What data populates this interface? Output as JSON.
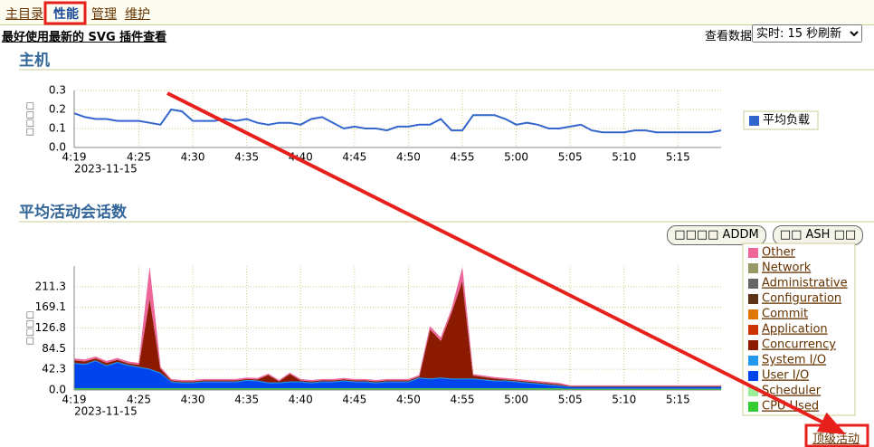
{
  "tabs": [
    "主目录",
    "性能",
    "管理",
    "维护"
  ],
  "notice": "最好使用最新的 SVG 插件查看",
  "view_label": "查看数据",
  "view_select": "实时: 15 秒刷新",
  "buttons": [
    "□□□□ ADDM",
    "□□ ASH □□"
  ],
  "link": "顶级活动",
  "chart_data": [
    {
      "type": "line",
      "title": "主机",
      "y_label": "□□□□",
      "x_date": "2023-11-15",
      "x": [
        "4:19",
        "4:20",
        "4:21",
        "4:22",
        "4:23",
        "4:24",
        "4:25",
        "4:26",
        "4:27",
        "4:28",
        "4:29",
        "4:30",
        "4:31",
        "4:32",
        "4:33",
        "4:34",
        "4:35",
        "4:36",
        "4:37",
        "4:38",
        "4:39",
        "4:40",
        "4:41",
        "4:42",
        "4:43",
        "4:44",
        "4:45",
        "4:46",
        "4:47",
        "4:48",
        "4:49",
        "4:50",
        "4:51",
        "4:52",
        "4:53",
        "4:54",
        "4:55",
        "4:56",
        "4:57",
        "4:58",
        "4:59",
        "5:00",
        "5:01",
        "5:02",
        "5:03",
        "5:04",
        "5:05",
        "5:06",
        "5:07",
        "5:08",
        "5:09",
        "5:10",
        "5:11",
        "5:12",
        "5:13",
        "5:14",
        "5:15",
        "5:16",
        "5:17",
        "5:18",
        "5:19"
      ],
      "xticks": [
        "4:19",
        "4:25",
        "4:30",
        "4:35",
        "4:40",
        "4:45",
        "4:50",
        "4:55",
        "5:00",
        "5:05",
        "5:10",
        "5:15"
      ],
      "ylim": [
        0,
        0.3
      ],
      "yticks": [
        {
          "value": 0,
          "label": "0.0"
        },
        0.1,
        0.2,
        0.3
      ],
      "grid": true,
      "series": [
        {
          "name": "平均负载",
          "color": "#3366cc",
          "values": [
            0.18,
            0.16,
            0.15,
            0.15,
            0.14,
            0.14,
            0.14,
            0.13,
            0.12,
            0.2,
            0.19,
            0.14,
            0.14,
            0.14,
            0.15,
            0.14,
            0.15,
            0.13,
            0.12,
            0.13,
            0.13,
            0.12,
            0.15,
            0.16,
            0.13,
            0.1,
            0.11,
            0.1,
            0.1,
            0.09,
            0.11,
            0.11,
            0.12,
            0.12,
            0.15,
            0.09,
            0.09,
            0.17,
            0.17,
            0.17,
            0.15,
            0.12,
            0.13,
            0.12,
            0.1,
            0.1,
            0.11,
            0.12,
            0.09,
            0.08,
            0.08,
            0.08,
            0.09,
            0.09,
            0.08,
            0.08,
            0.08,
            0.08,
            0.08,
            0.08,
            0.09
          ]
        }
      ]
    },
    {
      "type": "stacked-area",
      "title": "平均活动会话数",
      "y_label": "□□□□",
      "x_date": "2023-11-15",
      "x": [
        "4:19",
        "4:20",
        "4:21",
        "4:22",
        "4:23",
        "4:24",
        "4:25",
        "4:26",
        "4:27",
        "4:28",
        "4:29",
        "4:30",
        "4:31",
        "4:32",
        "4:33",
        "4:34",
        "4:35",
        "4:36",
        "4:37",
        "4:38",
        "4:39",
        "4:40",
        "4:41",
        "4:42",
        "4:43",
        "4:44",
        "4:45",
        "4:46",
        "4:47",
        "4:48",
        "4:49",
        "4:50",
        "4:51",
        "4:52",
        "4:53",
        "4:54",
        "4:55",
        "4:56",
        "4:57",
        "4:58",
        "4:59",
        "5:00",
        "5:01",
        "5:02",
        "5:03",
        "5:04",
        "5:05",
        "5:06",
        "5:07",
        "5:08",
        "5:09",
        "5:10",
        "5:11",
        "5:12",
        "5:13",
        "5:14",
        "5:15",
        "5:16",
        "5:17",
        "5:18",
        "5:19"
      ],
      "xticks": [
        "4:19",
        "4:25",
        "4:30",
        "4:35",
        "4:40",
        "4:45",
        "4:50",
        "4:55",
        "5:00",
        "5:05",
        "5:10",
        "5:15"
      ],
      "ylim": [
        0,
        253.6
      ],
      "yticks": [
        {
          "value": 0,
          "label": "0.0"
        },
        42.3,
        84.5,
        126.8,
        169.1,
        211.3
      ],
      "grid": true,
      "series": [
        {
          "name": "Other",
          "color": "#ee6699",
          "values": [
            3,
            3,
            3,
            3,
            3,
            3,
            3,
            60,
            3,
            2,
            2,
            2,
            2,
            2,
            2,
            2,
            2,
            2,
            2,
            2,
            2,
            2,
            2,
            2,
            2,
            2,
            2,
            2,
            2,
            2,
            2,
            2,
            2,
            6,
            6,
            6,
            25,
            2,
            2,
            2,
            2,
            2,
            2,
            2,
            2,
            2,
            1,
            1,
            1,
            1,
            1,
            1,
            1,
            1,
            1,
            1,
            1,
            1,
            1,
            1,
            1
          ]
        },
        {
          "name": "Network",
          "color": "#999966",
          "values": [
            0,
            0,
            0,
            0,
            0,
            0,
            0,
            0,
            0,
            0,
            0,
            0,
            0,
            0,
            0,
            0,
            0,
            0,
            0,
            0,
            0,
            0,
            0,
            0,
            0,
            0,
            0,
            0,
            0,
            0,
            0,
            0,
            0,
            0,
            0,
            0,
            0,
            0,
            0,
            0,
            0,
            0,
            0,
            0,
            0,
            0,
            0,
            0,
            0,
            0,
            0,
            0,
            0,
            0,
            0,
            0,
            0,
            0,
            0,
            0,
            0
          ]
        },
        {
          "name": "Administrative",
          "color": "#666666",
          "values": [
            0,
            0,
            0,
            0,
            0,
            0,
            0,
            0,
            0,
            0,
            0,
            0,
            0,
            0,
            0,
            0,
            0,
            0,
            0,
            0,
            0,
            0,
            0,
            0,
            0,
            0,
            0,
            0,
            0,
            0,
            0,
            0,
            0,
            0,
            0,
            0,
            0,
            0,
            0,
            0,
            0,
            0,
            0,
            0,
            0,
            0,
            0,
            0,
            0,
            0,
            0,
            0,
            0,
            0,
            0,
            0,
            0,
            0,
            0,
            0,
            0
          ]
        },
        {
          "name": "Configuration",
          "color": "#5c3317",
          "values": [
            0,
            0,
            0,
            0,
            0,
            0,
            0,
            0,
            0,
            0,
            0,
            0,
            0,
            0,
            0,
            0,
            0,
            0,
            0,
            0,
            0,
            0,
            0,
            0,
            0,
            0,
            0,
            0,
            0,
            0,
            0,
            0,
            0,
            0,
            0,
            0,
            0,
            0,
            0,
            0,
            0,
            0,
            0,
            0,
            0,
            0,
            0,
            0,
            0,
            0,
            0,
            0,
            0,
            0,
            0,
            0,
            0,
            0,
            0,
            0,
            0
          ]
        },
        {
          "name": "Commit",
          "color": "#e07800",
          "values": [
            0,
            0,
            0,
            0,
            0,
            0,
            0,
            0,
            0,
            0,
            0,
            0,
            0,
            0,
            0,
            0,
            0,
            0,
            0,
            0,
            0,
            0,
            0,
            0,
            0,
            0,
            0,
            0,
            0,
            0,
            0,
            0,
            0,
            0,
            0,
            0,
            0,
            0,
            0,
            0,
            0,
            0,
            0,
            0,
            0,
            0,
            0,
            0,
            0,
            0,
            0,
            0,
            0,
            0,
            0,
            0,
            0,
            0,
            0,
            0,
            0
          ]
        },
        {
          "name": "Application",
          "color": "#cc3300",
          "values": [
            0,
            0,
            0,
            0,
            0,
            0,
            0,
            0,
            0,
            0,
            0,
            0,
            0,
            0,
            0,
            0,
            0,
            0,
            0,
            0,
            0,
            0,
            0,
            0,
            0,
            0,
            0,
            0,
            0,
            0,
            0,
            0,
            0,
            0,
            0,
            0,
            0,
            0,
            0,
            0,
            0,
            0,
            0,
            0,
            0,
            0,
            0,
            0,
            0,
            0,
            0,
            0,
            0,
            0,
            0,
            0,
            0,
            0,
            0,
            0,
            0
          ]
        },
        {
          "name": "Concurrency",
          "color": "#8b1a00",
          "values": [
            5,
            5,
            4,
            5,
            4,
            3,
            4,
            145,
            8,
            2,
            2,
            2,
            2,
            2,
            2,
            2,
            2,
            2,
            15,
            2,
            15,
            2,
            2,
            2,
            2,
            2,
            2,
            2,
            2,
            2,
            2,
            2,
            2,
            100,
            75,
            135,
            200,
            6,
            5,
            4,
            2,
            2,
            2,
            2,
            2,
            2,
            1,
            1,
            1,
            1,
            1,
            1,
            1,
            1,
            1,
            1,
            1,
            1,
            1,
            1,
            1
          ]
        },
        {
          "name": "System I/O",
          "color": "#2299ee",
          "values": [
            2,
            2,
            2,
            2,
            2,
            2,
            2,
            2,
            2,
            2,
            2,
            2,
            2,
            2,
            2,
            2,
            2,
            2,
            2,
            2,
            2,
            2,
            2,
            2,
            2,
            2,
            2,
            2,
            2,
            2,
            2,
            2,
            2,
            2,
            2,
            2,
            2,
            2,
            2,
            2,
            2,
            2,
            2,
            2,
            2,
            2,
            1,
            1,
            1,
            1,
            1,
            1,
            1,
            1,
            1,
            1,
            1,
            1,
            1,
            1,
            1
          ]
        },
        {
          "name": "User I/O",
          "color": "#0044ee",
          "values": [
            50,
            48,
            55,
            45,
            52,
            46,
            42,
            38,
            30,
            12,
            10,
            10,
            12,
            12,
            12,
            12,
            15,
            14,
            10,
            10,
            12,
            12,
            10,
            12,
            12,
            14,
            12,
            12,
            10,
            12,
            12,
            12,
            20,
            18,
            20,
            18,
            18,
            18,
            16,
            14,
            14,
            12,
            10,
            8,
            6,
            4,
            3,
            3,
            3,
            3,
            3,
            3,
            3,
            3,
            3,
            3,
            3,
            3,
            3,
            3,
            3
          ]
        },
        {
          "name": "Scheduler",
          "color": "#99ee99",
          "values": [
            0,
            0,
            0,
            0,
            0,
            0,
            0,
            0,
            0,
            0,
            0,
            0,
            0,
            0,
            0,
            0,
            0,
            0,
            0,
            0,
            0,
            0,
            0,
            0,
            0,
            0,
            0,
            0,
            0,
            0,
            0,
            0,
            0,
            0,
            0,
            0,
            0,
            0,
            0,
            0,
            0,
            0,
            0,
            0,
            0,
            0,
            0,
            0,
            0,
            0,
            0,
            0,
            0,
            0,
            0,
            0,
            0,
            0,
            0,
            0,
            0
          ]
        },
        {
          "name": "CPU Used",
          "color": "#33cc33",
          "values": [
            4,
            4,
            4,
            4,
            4,
            4,
            4,
            4,
            4,
            4,
            4,
            4,
            4,
            4,
            4,
            4,
            4,
            4,
            4,
            4,
            4,
            4,
            4,
            4,
            4,
            4,
            4,
            4,
            4,
            4,
            4,
            4,
            4,
            4,
            4,
            4,
            4,
            4,
            4,
            4,
            4,
            4,
            4,
            4,
            4,
            4,
            3,
            3,
            3,
            3,
            3,
            3,
            3,
            3,
            3,
            3,
            3,
            3,
            3,
            3,
            3
          ]
        }
      ]
    }
  ]
}
